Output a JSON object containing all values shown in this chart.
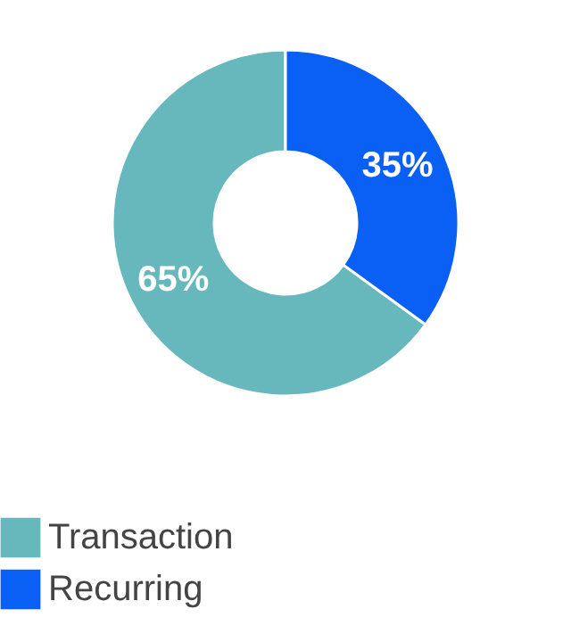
{
  "chart_data": {
    "type": "donut",
    "categories": [
      "Transaction",
      "Recurring"
    ],
    "values": [
      65,
      35
    ],
    "colors": [
      "#66b8bc",
      "#0a5ff5"
    ],
    "value_labels": [
      "65%",
      "35%"
    ],
    "legend": "bottom"
  }
}
